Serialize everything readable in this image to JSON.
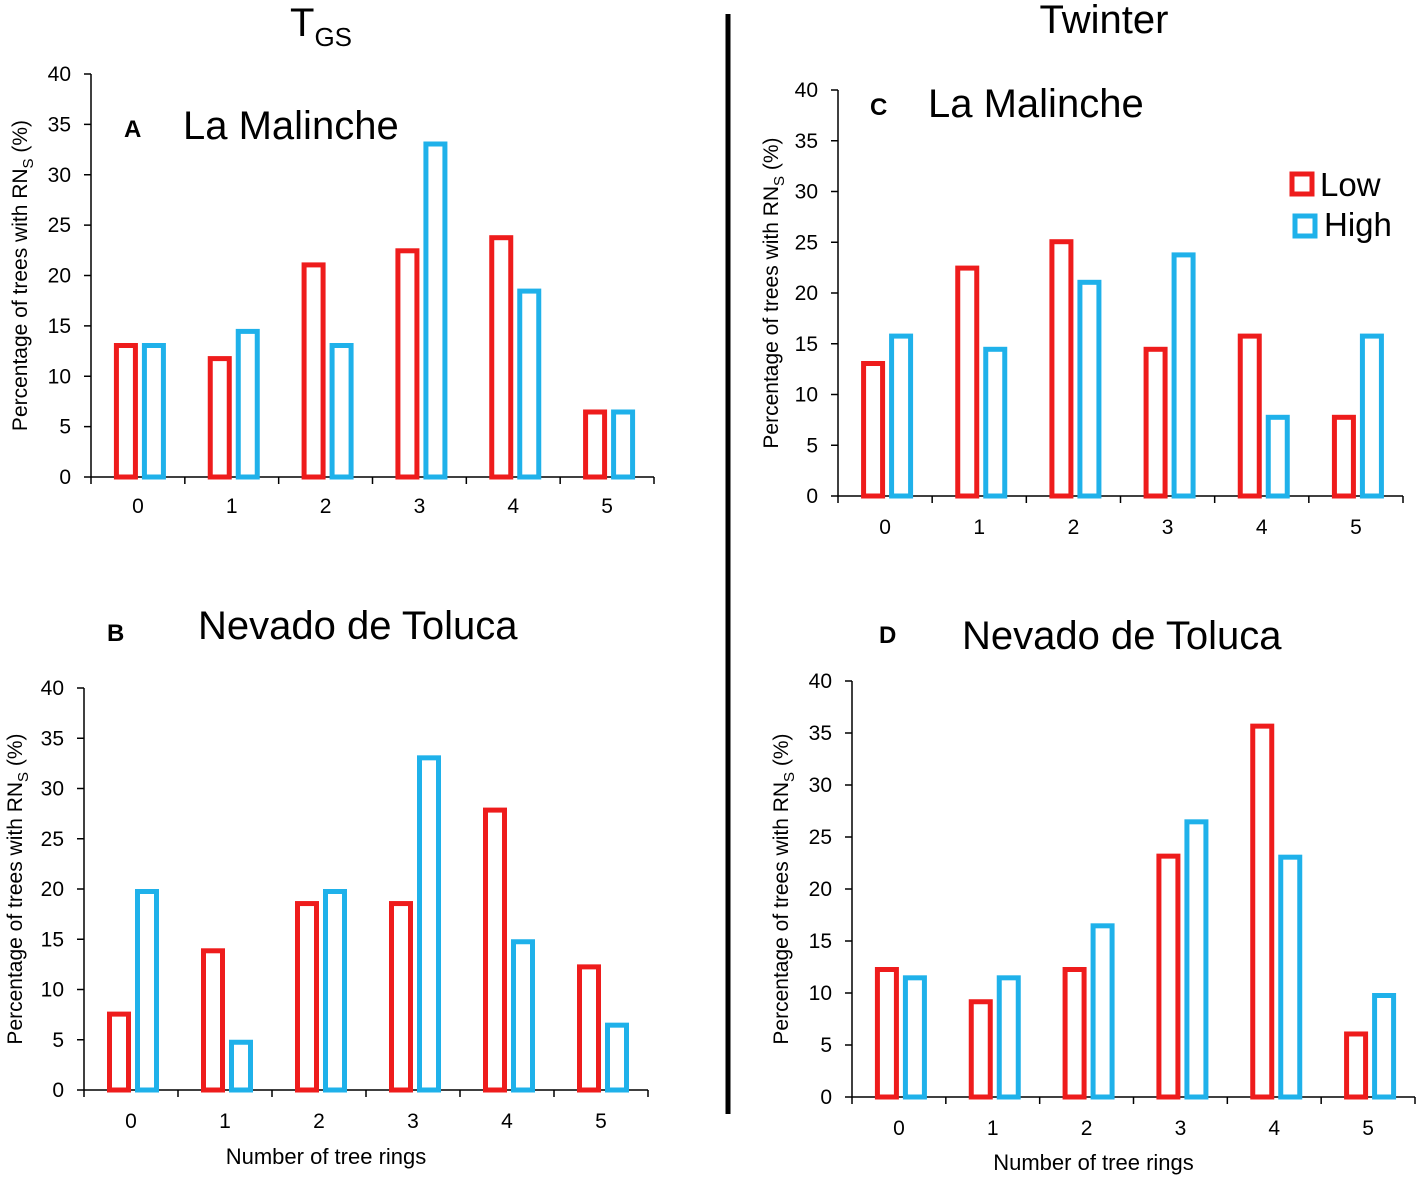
{
  "column_titles": {
    "left": {
      "main": "T",
      "subscript": "GS"
    },
    "right": "Twinter"
  },
  "legend": [
    {
      "label": "Low",
      "color": "#ee1c1c"
    },
    {
      "label": "High",
      "color": "#1fb1ea"
    }
  ],
  "colors": {
    "low": "#ee1c1c",
    "high": "#1fb1ea",
    "axis": "#000000"
  },
  "chart_data": [
    {
      "id": "A",
      "type": "bar",
      "letter": "A",
      "title": "La Malinche",
      "ylabel": {
        "prefix": "Percentage of trees with RN",
        "subscript": "S",
        "suffix": " (%)"
      },
      "xlabel": "",
      "categories": [
        "0",
        "1",
        "2",
        "3",
        "4",
        "5"
      ],
      "ylim": [
        0,
        40
      ],
      "yticks": [
        0,
        5,
        10,
        15,
        20,
        25,
        30,
        35,
        40
      ],
      "series": [
        {
          "name": "Low",
          "values": [
            13.3,
            12.0,
            21.3,
            22.7,
            24.0,
            6.7
          ]
        },
        {
          "name": "High",
          "values": [
            13.3,
            14.7,
            13.3,
            33.3,
            18.7,
            6.7
          ]
        }
      ]
    },
    {
      "id": "B",
      "type": "bar",
      "letter": "B",
      "title": "Nevado de Toluca",
      "ylabel": {
        "prefix": "Percentage of trees with RN",
        "subscript": "S",
        "suffix": " (%)"
      },
      "xlabel": "Number of tree rings",
      "categories": [
        "0",
        "1",
        "2",
        "3",
        "4",
        "5"
      ],
      "ylim": [
        0,
        40
      ],
      "yticks": [
        0,
        5,
        10,
        15,
        20,
        25,
        30,
        35,
        40
      ],
      "series": [
        {
          "name": "Low",
          "values": [
            7.8,
            14.1,
            18.8,
            18.8,
            28.1,
            12.5
          ]
        },
        {
          "name": "High",
          "values": [
            20.0,
            5.0,
            20.0,
            33.3,
            15.0,
            6.7
          ]
        }
      ]
    },
    {
      "id": "C",
      "type": "bar",
      "letter": "C",
      "title": "La Malinche",
      "ylabel": {
        "prefix": "Percentage of trees with  RN",
        "subscript": "S",
        "suffix": " (%)"
      },
      "xlabel": "",
      "categories": [
        "0",
        "1",
        "2",
        "3",
        "4",
        "5"
      ],
      "ylim": [
        0,
        40
      ],
      "yticks": [
        0,
        5,
        10,
        15,
        20,
        25,
        30,
        35,
        40
      ],
      "series": [
        {
          "name": "Low",
          "values": [
            13.3,
            22.7,
            25.3,
            14.7,
            16.0,
            8.0
          ]
        },
        {
          "name": "High",
          "values": [
            16.0,
            14.7,
            21.3,
            24.0,
            8.0,
            16.0
          ]
        }
      ]
    },
    {
      "id": "D",
      "type": "bar",
      "letter": "D",
      "title": "Nevado de Toluca",
      "ylabel": {
        "prefix": "Percentage of trees with RN",
        "subscript": "S",
        "suffix": " (%)"
      },
      "xlabel": "Number of tree rings",
      "categories": [
        "0",
        "1",
        "2",
        "3",
        "4",
        "5"
      ],
      "ylim": [
        0,
        40
      ],
      "yticks": [
        0,
        5,
        10,
        15,
        20,
        25,
        30,
        35,
        40
      ],
      "series": [
        {
          "name": "Low",
          "values": [
            12.5,
            9.4,
            12.5,
            23.4,
            35.9,
            6.3
          ]
        },
        {
          "name": "High",
          "values": [
            11.7,
            11.7,
            16.7,
            26.7,
            23.3,
            10.0
          ]
        }
      ]
    }
  ]
}
